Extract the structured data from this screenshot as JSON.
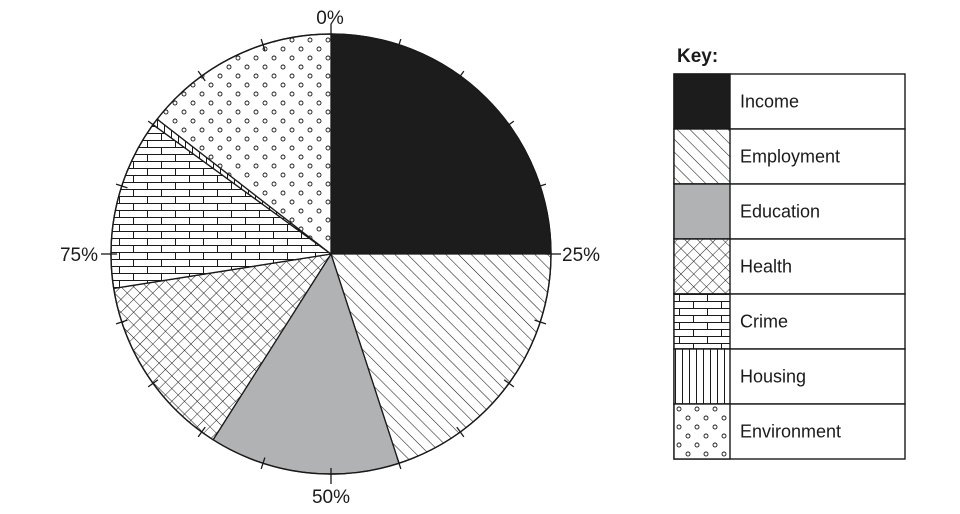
{
  "chart_data": {
    "type": "pie",
    "categories": [
      "Income",
      "Employment",
      "Education",
      "Health",
      "Crime",
      "Housing",
      "Environment"
    ],
    "values": [
      25,
      20,
      14,
      13.5,
      12.5,
      0.5,
      14.5
    ],
    "patterns": [
      "solid-black",
      "diagonal-hatch",
      "solid-grey",
      "crosshatch",
      "brick",
      "vertical-lines",
      "circles"
    ],
    "fill_colors": [
      "#1c1c1c",
      "#ffffff",
      "#b1b2b4",
      "#ffffff",
      "#ffffff",
      "#ffffff",
      "#ffffff"
    ],
    "start_angle_deg": 0,
    "direction": "clockwise",
    "tick_step_percent": 5,
    "axis_labels": [
      "0%",
      "25%",
      "50%",
      "75%"
    ],
    "legend_title": "Key:",
    "legend_placement": "right"
  }
}
